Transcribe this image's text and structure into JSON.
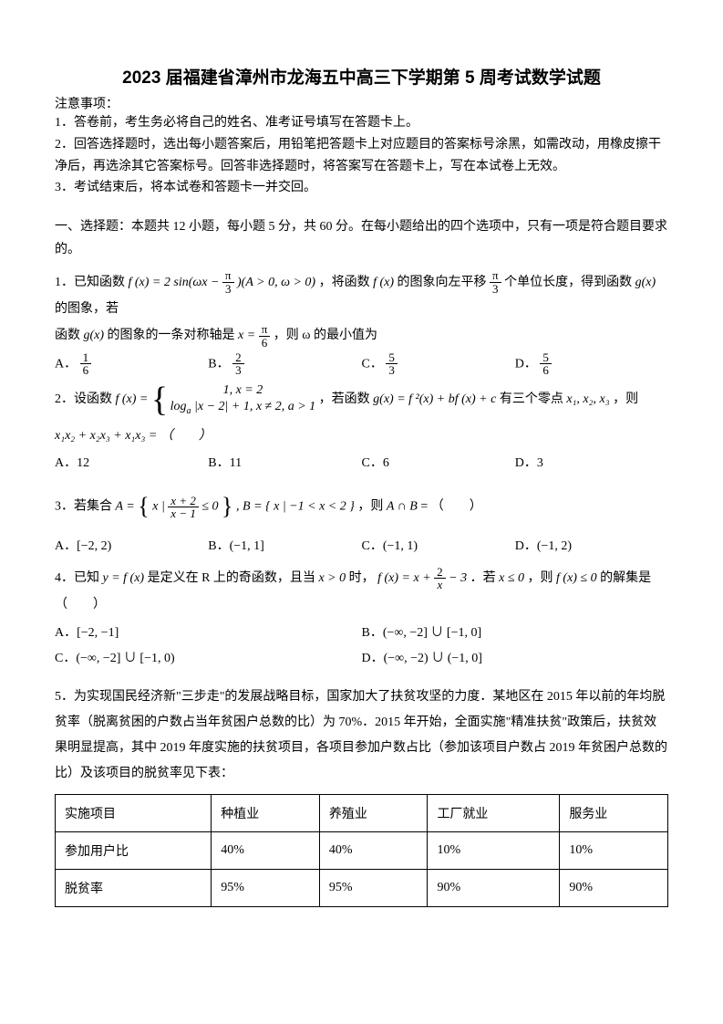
{
  "title": "2023 届福建省漳州市龙海五中高三下学期第 5 周考试数学试题",
  "notice_head": "注意事项：",
  "notices": [
    "1．答卷前，考生务必将自己的姓名、准考证号填写在答题卡上。",
    "2．回答选择题时，选出每小题答案后，用铅笔把答题卡上对应题目的答案标号涂黑，如需改动，用橡皮擦干净后，再选涂其它答案标号。回答非选择题时，将答案写在答题卡上，写在本试卷上无效。",
    "3．考试结束后，将本试卷和答题卡一并交回。"
  ],
  "section1": "一、选择题：本题共 12 小题，每小题 5 分，共 60 分。在每小题给出的四个选项中，只有一项是符合题目要求的。",
  "q1": {
    "pre": "1．已知函数 ",
    "func_fx": "f (x) = 2 sin(ωx − ",
    "frac1_num": "π",
    "frac1_den": "3",
    "cond": ")(A > 0, ω > 0)",
    "mid1": " ，将函数 ",
    "fx2": "f (x)",
    "mid2": " 的图象向左平移 ",
    "frac2_num": "π",
    "frac2_den": "3",
    "mid3": " 个单位长度，得到函数 ",
    "gx": "g(x)",
    "mid4": " 的图象，若",
    "line2a": "函数 ",
    "gx2": "g(x)",
    "line2b": " 的图象的一条对称轴是 ",
    "xeq": "x = ",
    "frac3_num": "π",
    "frac3_den": "6",
    "line2c": " ，则 ω 的最小值为",
    "choices": {
      "A_label": "A．",
      "A_num": "1",
      "A_den": "6",
      "B_label": "B．",
      "B_num": "2",
      "B_den": "3",
      "C_label": "C．",
      "C_num": "5",
      "C_den": "3",
      "D_label": "D．",
      "D_num": "5",
      "D_den": "6"
    }
  },
  "q2": {
    "pre": "2．设函数 ",
    "fx": "f (x) = ",
    "piece1": "1, x = 2",
    "piece2_a": "log",
    "piece2_sub": "a",
    "piece2_b": "|x − 2| + 1, x ≠ 2, a > 1",
    "mid": " ，若函数 ",
    "gx": "g(x) = f ²(x) + bf (x) + c",
    "tail": " 有三个零点 ",
    "x1": "x₁",
    "x2": "x₂",
    "x3": "x₃",
    "tail2": " ，则",
    "expr": "x₁x₂ + x₂x₃ + x₁x₃ = （　　）",
    "choices": {
      "A": "A．12",
      "B": "B．11",
      "C": "C．6",
      "D": "D．3"
    }
  },
  "q3": {
    "pre": "3．若集合 ",
    "A": "A = ",
    "lb": "{",
    "xbar": "x | ",
    "frac_num": "x + 2",
    "frac_den": "x − 1",
    "le": " ≤ 0",
    "rb": "}",
    "comma": ", ",
    "B": "B = { x | −1 < x < 2 }",
    "mid": " ，则 ",
    "cap": "A ∩ B",
    "eq": " = （　　）",
    "choices": {
      "A": "A．[−2, 2)",
      "B": "B．(−1, 1]",
      "C": "C．(−1, 1)",
      "D": "D．(−1, 2)"
    }
  },
  "q4": {
    "pre": "4．已知 ",
    "yfx": "y = f (x)",
    "mid1": " 是定义在 R 上的奇函数，且当 ",
    "cond": "x > 0",
    "mid2": " 时， ",
    "fx": "f (x) = x + ",
    "frac_num": "2",
    "frac_den": "x",
    "tail1": " − 3",
    "mid3": "．若 ",
    "xle": "x ≤ 0",
    "mid4": " ，则 ",
    "fxle": "f (x) ≤ 0",
    "mid5": " 的解集是（　　）",
    "choices": {
      "A": "A．[−2, −1]",
      "B": "B．(−∞, −2] ∪ [−1, 0]",
      "C": "C．(−∞, −2] ∪ [−1, 0)",
      "D": "D．(−∞, −2) ∪ (−1, 0]"
    }
  },
  "q5": {
    "text": "5．为实现国民经济新\"三步走\"的发展战略目标，国家加大了扶贫攻坚的力度．某地区在 2015 年以前的年均脱贫率（脱离贫困的户数占当年贫困户总数的比）为 70%．2015 年开始，全面实施\"精准扶贫\"政策后，扶贫效果明显提高，其中 2019 年度实施的扶贫项目，各项目参加户数占比（参加该项目户数占 2019 年贫困户总数的比）及该项目的脱贫率见下表：",
    "table": {
      "columns": [
        "实施项目",
        "种植业",
        "养殖业",
        "工厂就业",
        "服务业"
      ],
      "rows": [
        [
          "参加用户比",
          "40%",
          "40%",
          "10%",
          "10%"
        ],
        [
          "脱贫率",
          "95%",
          "95%",
          "90%",
          "90%"
        ]
      ],
      "border_color": "#000000",
      "cell_padding": "10px"
    }
  }
}
